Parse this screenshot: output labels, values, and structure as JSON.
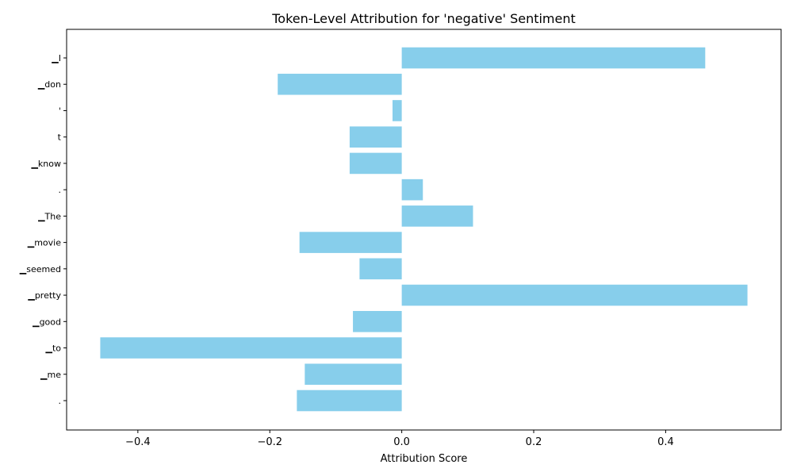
{
  "chart_data": {
    "type": "bar",
    "orientation": "horizontal",
    "title": "Token-Level Attribution for 'negative' Sentiment",
    "xlabel": "Attribution Score",
    "ylabel": "",
    "categories": [
      "▁I",
      "▁don",
      "'",
      "t",
      "▁know",
      ".",
      "▁The",
      "▁movie",
      "▁seemed",
      "▁pretty",
      "▁good",
      "▁to",
      "▁me",
      "."
    ],
    "values": [
      0.46,
      -0.188,
      -0.014,
      -0.079,
      -0.079,
      0.032,
      0.108,
      -0.155,
      -0.064,
      0.524,
      -0.074,
      -0.457,
      -0.147,
      -0.159
    ],
    "xlim": [
      -0.508,
      0.575
    ],
    "xticks": [
      -0.4,
      -0.2,
      0.0,
      0.2,
      0.4
    ],
    "xtick_labels": [
      "−0.4",
      "−0.2",
      "0.0",
      "0.2",
      "0.4"
    ],
    "bar_color": "#87ceeb",
    "grid": false
  }
}
